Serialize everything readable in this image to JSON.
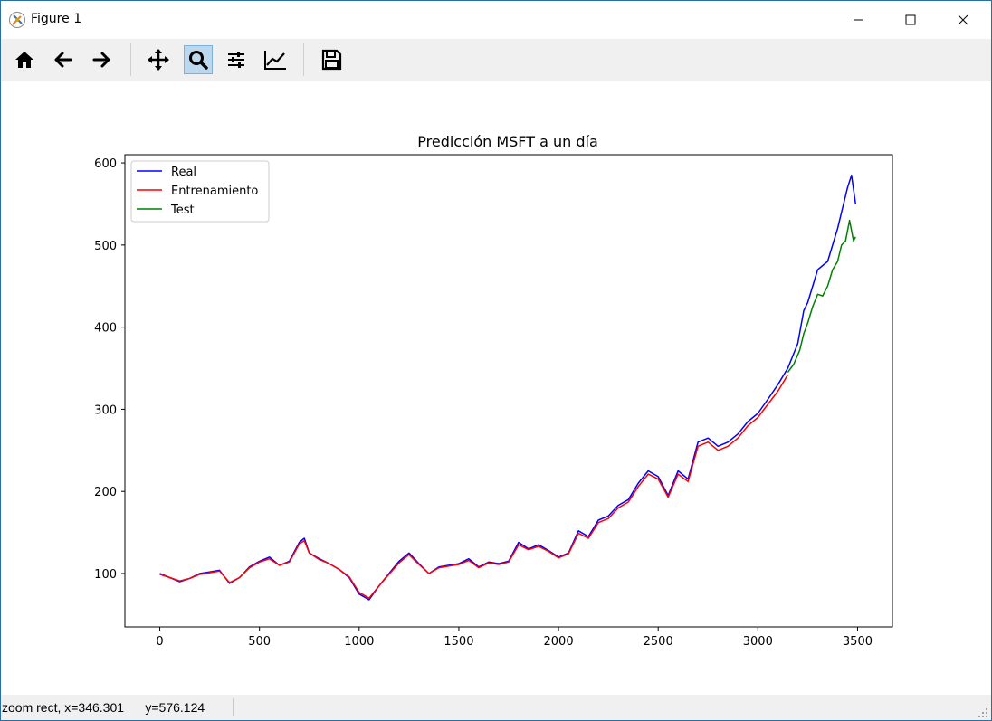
{
  "window": {
    "title": "Figure 1",
    "controls": {
      "minimize": "minimize",
      "maximize": "maximize",
      "close": "close"
    }
  },
  "toolbar": {
    "buttons": [
      {
        "name": "home",
        "icon": "home-icon",
        "active": false
      },
      {
        "name": "back",
        "icon": "arrow-left-icon",
        "active": false
      },
      {
        "name": "forward",
        "icon": "arrow-right-icon",
        "active": false
      },
      {
        "name": "pan",
        "icon": "move-icon",
        "active": false
      },
      {
        "name": "zoom",
        "icon": "magnifier-icon",
        "active": true
      },
      {
        "name": "subplots",
        "icon": "sliders-icon",
        "active": false
      },
      {
        "name": "customize",
        "icon": "line-chart-icon",
        "active": false
      },
      {
        "name": "save",
        "icon": "floppy-disk-icon",
        "active": false
      }
    ],
    "active_color": "#bcd8ef"
  },
  "status": {
    "text": "zoom rect, x=346.301      y=576.124"
  },
  "chart_data": {
    "type": "line",
    "title": "Predicción MSFT a un día",
    "xlabel": "",
    "ylabel": "",
    "xlim": [
      -175,
      3675
    ],
    "ylim": [
      35,
      610
    ],
    "xticks": [
      0,
      500,
      1000,
      1500,
      2000,
      2500,
      3000,
      3500
    ],
    "yticks": [
      100,
      200,
      300,
      400,
      500,
      600
    ],
    "grid": false,
    "legend_position": "upper-left",
    "series": [
      {
        "name": "Real",
        "color": "#0000ff",
        "x": [
          0,
          50,
          100,
          150,
          200,
          250,
          300,
          350,
          400,
          450,
          500,
          550,
          600,
          650,
          700,
          725,
          750,
          800,
          850,
          900,
          950,
          1000,
          1050,
          1100,
          1150,
          1200,
          1250,
          1300,
          1350,
          1400,
          1450,
          1500,
          1550,
          1600,
          1650,
          1700,
          1750,
          1800,
          1850,
          1900,
          1950,
          2000,
          2050,
          2100,
          2150,
          2200,
          2250,
          2300,
          2350,
          2400,
          2450,
          2500,
          2550,
          2600,
          2650,
          2700,
          2750,
          2800,
          2850,
          2900,
          2950,
          3000,
          3050,
          3100,
          3150,
          3200,
          3230,
          3250,
          3300,
          3350,
          3400,
          3430,
          3450,
          3470,
          3490
        ],
        "y": [
          100,
          95,
          90,
          94,
          100,
          102,
          104,
          88,
          95,
          108,
          115,
          120,
          110,
          115,
          138,
          143,
          125,
          118,
          112,
          105,
          95,
          75,
          68,
          85,
          100,
          115,
          125,
          112,
          100,
          108,
          110,
          112,
          118,
          108,
          114,
          112,
          115,
          138,
          130,
          135,
          128,
          120,
          125,
          152,
          145,
          165,
          170,
          183,
          190,
          210,
          225,
          218,
          195,
          225,
          215,
          260,
          265,
          255,
          260,
          270,
          285,
          295,
          312,
          330,
          350,
          380,
          420,
          430,
          470,
          480,
          520,
          550,
          570,
          585,
          550
        ]
      },
      {
        "name": "Entrenamiento",
        "color": "#ff0000",
        "x": [
          0,
          50,
          100,
          150,
          200,
          250,
          300,
          350,
          400,
          450,
          500,
          550,
          600,
          650,
          700,
          725,
          750,
          800,
          850,
          900,
          950,
          1000,
          1050,
          1100,
          1150,
          1200,
          1250,
          1300,
          1350,
          1400,
          1450,
          1500,
          1550,
          1600,
          1650,
          1700,
          1750,
          1800,
          1850,
          1900,
          1950,
          2000,
          2050,
          2100,
          2150,
          2200,
          2250,
          2300,
          2350,
          2400,
          2450,
          2500,
          2550,
          2600,
          2650,
          2700,
          2750,
          2800,
          2850,
          2900,
          2950,
          3000,
          3050,
          3100,
          3150
        ],
        "y": [
          99,
          95,
          91,
          94,
          99,
          101,
          103,
          89,
          95,
          107,
          114,
          118,
          110,
          114,
          136,
          140,
          125,
          117,
          112,
          105,
          96,
          77,
          70,
          85,
          99,
          113,
          123,
          111,
          100,
          107,
          109,
          111,
          116,
          107,
          113,
          111,
          114,
          135,
          129,
          133,
          127,
          119,
          124,
          149,
          143,
          162,
          167,
          180,
          187,
          206,
          221,
          215,
          193,
          221,
          212,
          255,
          260,
          250,
          255,
          265,
          280,
          290,
          306,
          322,
          342
        ]
      },
      {
        "name": "Test",
        "color": "#008000",
        "x": [
          3150,
          3180,
          3210,
          3230,
          3250,
          3275,
          3300,
          3325,
          3350,
          3375,
          3400,
          3420,
          3440,
          3460,
          3480,
          3490
        ],
        "y": [
          345,
          355,
          372,
          392,
          405,
          425,
          440,
          438,
          450,
          470,
          480,
          500,
          505,
          530,
          505,
          510
        ]
      }
    ]
  }
}
